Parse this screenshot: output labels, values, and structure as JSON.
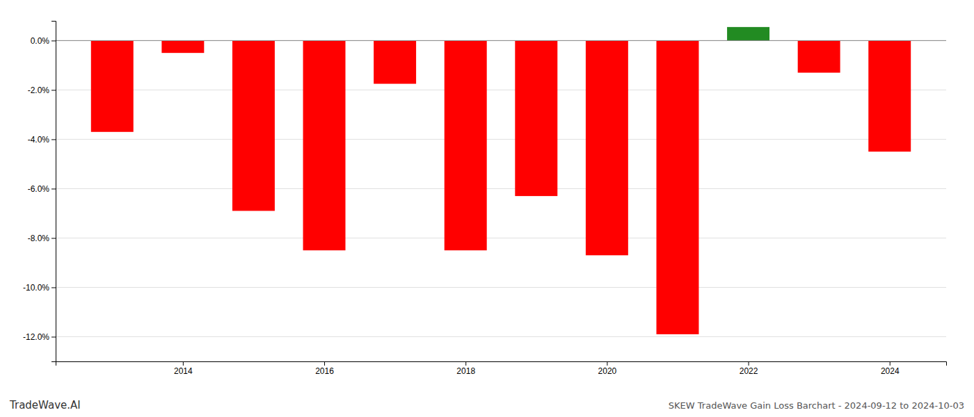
{
  "chart_data": {
    "type": "bar",
    "x": [
      2013,
      2014,
      2015,
      2016,
      2017,
      2018,
      2019,
      2020,
      2021,
      2022,
      2023,
      2024
    ],
    "values": [
      -3.7,
      -0.5,
      -6.9,
      -8.5,
      -1.75,
      -8.5,
      -6.3,
      -8.7,
      -11.9,
      0.55,
      -1.3,
      -4.5
    ],
    "colors": [
      "#ff0000",
      "#ff0000",
      "#ff0000",
      "#ff0000",
      "#ff0000",
      "#ff0000",
      "#ff0000",
      "#ff0000",
      "#ff0000",
      "#228B22",
      "#ff0000",
      "#ff0000"
    ],
    "xlim": [
      2012.2,
      2024.8
    ],
    "xticks": [
      2014,
      2016,
      2018,
      2020,
      2022,
      2024
    ],
    "ylim": [
      -13.0,
      0.8
    ],
    "yticks": [
      {
        "value": 0.0,
        "label": "0.0%"
      },
      {
        "value": -2.0,
        "label": "-2.0%"
      },
      {
        "value": -4.0,
        "label": "-4.0%"
      },
      {
        "value": -6.0,
        "label": "-6.0%"
      },
      {
        "value": -8.0,
        "label": "-8.0%"
      },
      {
        "value": -10.0,
        "label": "-10.0%"
      },
      {
        "value": -12.0,
        "label": "-12.0%"
      }
    ],
    "grid": true,
    "annotations": [
      "TradeWave.AI",
      "SKEW TradeWave Gain Loss Barchart - 2024-09-12 to 2024-10-03"
    ]
  }
}
